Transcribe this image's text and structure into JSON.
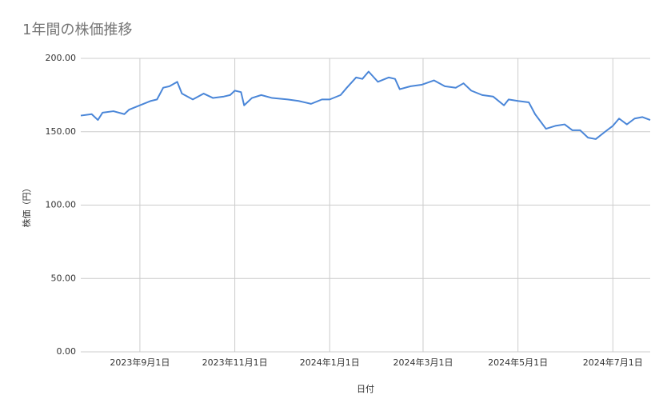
{
  "chart_data": {
    "type": "line",
    "title": "1年間の株価推移",
    "x_label": "日付",
    "y_label": "株価（円）",
    "x": [
      "2023-07-25",
      "2023-08-01",
      "2023-08-05",
      "2023-08-08",
      "2023-08-15",
      "2023-08-22",
      "2023-08-25",
      "2023-09-01",
      "2023-09-08",
      "2023-09-12",
      "2023-09-16",
      "2023-09-20",
      "2023-09-25",
      "2023-09-28",
      "2023-10-05",
      "2023-10-12",
      "2023-10-18",
      "2023-10-25",
      "2023-10-29",
      "2023-11-01",
      "2023-11-05",
      "2023-11-07",
      "2023-11-12",
      "2023-11-18",
      "2023-11-25",
      "2023-12-05",
      "2023-12-12",
      "2023-12-20",
      "2023-12-27",
      "2024-01-01",
      "2024-01-08",
      "2024-01-12",
      "2024-01-18",
      "2024-01-22",
      "2024-01-26",
      "2024-02-01",
      "2024-02-08",
      "2024-02-12",
      "2024-02-15",
      "2024-02-22",
      "2024-02-29",
      "2024-03-08",
      "2024-03-15",
      "2024-03-22",
      "2024-03-27",
      "2024-04-01",
      "2024-04-08",
      "2024-04-15",
      "2024-04-22",
      "2024-04-25",
      "2024-05-01",
      "2024-05-08",
      "2024-05-12",
      "2024-05-19",
      "2024-05-25",
      "2024-05-31",
      "2024-06-05",
      "2024-06-10",
      "2024-06-15",
      "2024-06-20",
      "2024-06-26",
      "2024-07-01",
      "2024-07-05",
      "2024-07-10",
      "2024-07-15",
      "2024-07-20",
      "2024-07-25"
    ],
    "values": [
      161,
      162,
      158,
      163,
      164,
      162,
      165,
      168,
      171,
      172,
      180,
      181,
      184,
      176,
      172,
      176,
      173,
      174,
      175,
      178,
      177,
      168,
      173,
      175,
      173,
      172,
      171,
      169,
      172,
      172,
      175,
      180,
      187,
      186,
      191,
      184,
      187,
      186,
      179,
      181,
      182,
      185,
      181,
      180,
      183,
      178,
      175,
      174,
      168,
      172,
      171,
      170,
      162,
      152,
      154,
      155,
      151,
      151,
      146,
      145,
      150,
      154,
      159,
      155,
      159,
      160,
      158
    ],
    "color": "#4a86d8",
    "xlim": [
      "2023-07-25",
      "2024-07-25"
    ],
    "xticks": [
      {
        "value": "2023-09-01",
        "label": "2023年9月1日"
      },
      {
        "value": "2023-11-01",
        "label": "2023年11月1日"
      },
      {
        "value": "2024-01-01",
        "label": "2024年1月1日"
      },
      {
        "value": "2024-03-01",
        "label": "2024年3月1日"
      },
      {
        "value": "2024-05-01",
        "label": "2024年5月1日"
      },
      {
        "value": "2024-07-01",
        "label": "2024年7月1日"
      }
    ],
    "ylim": [
      0,
      200
    ],
    "yticks": [
      {
        "value": 0,
        "label": "0.00"
      },
      {
        "value": 50,
        "label": "50.00"
      },
      {
        "value": 100,
        "label": "100.00"
      },
      {
        "value": 150,
        "label": "150.00"
      },
      {
        "value": 200,
        "label": "200.00"
      }
    ],
    "grid": true
  }
}
